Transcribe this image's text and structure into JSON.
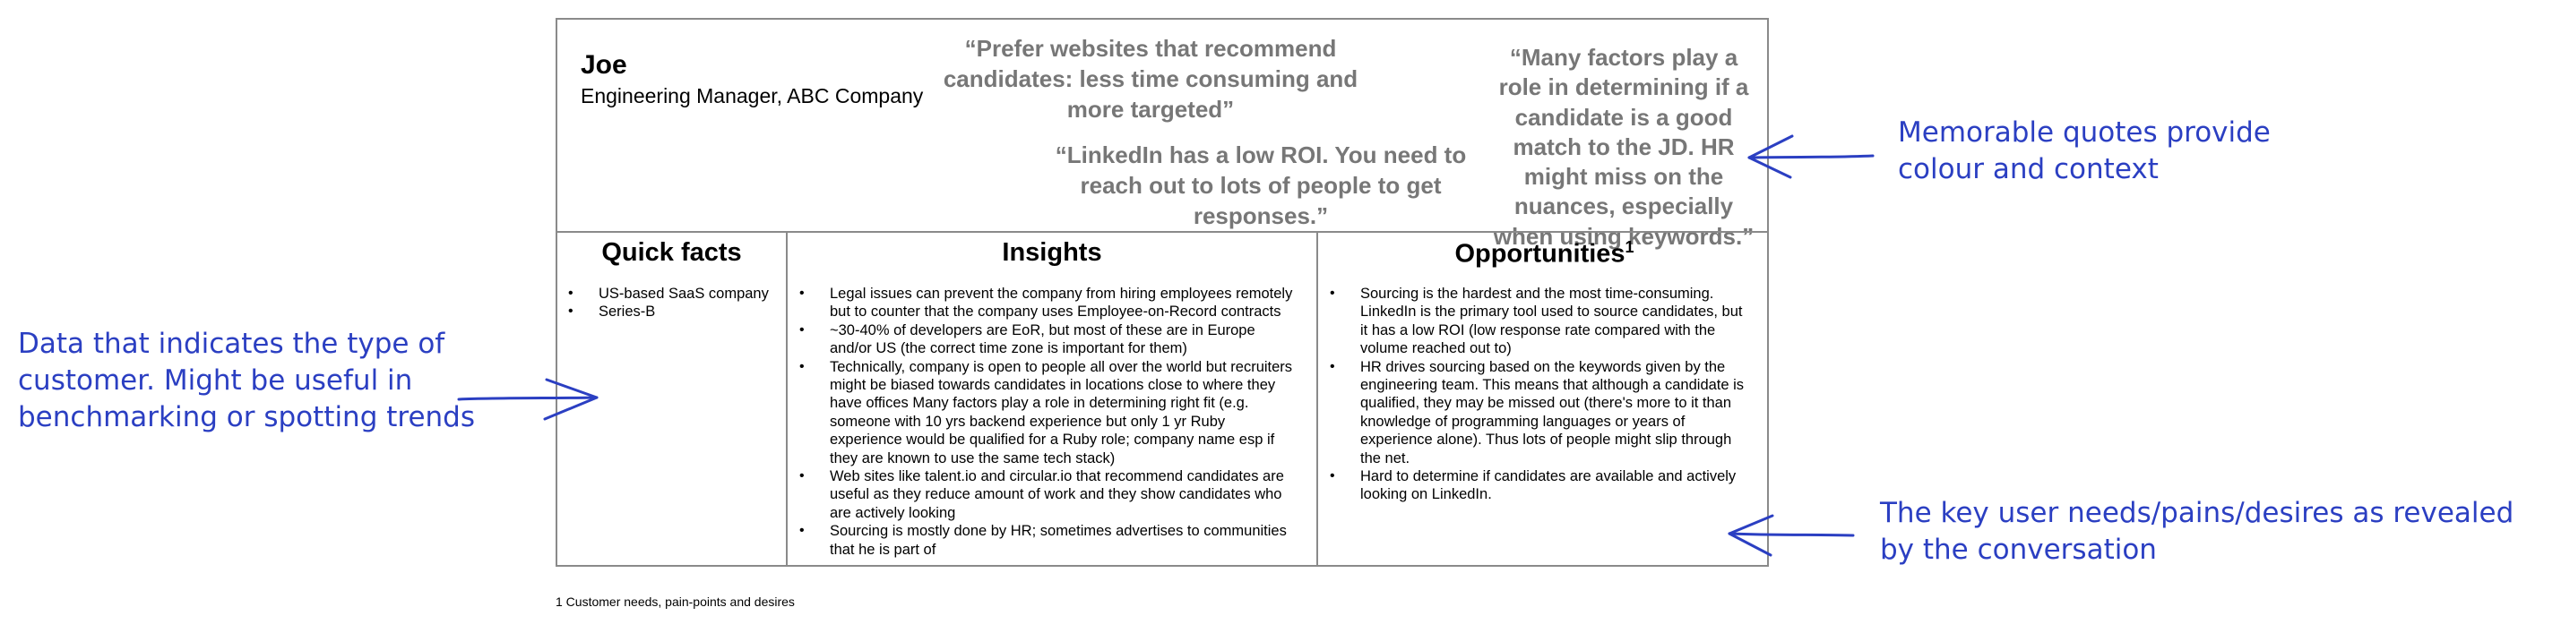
{
  "card": {
    "name": "Joe",
    "role": "Engineering Manager, ABC Company",
    "quotes": [
      "“Prefer websites that recommend candidates: less time consuming and more targeted”",
      "“LinkedIn has a low ROI. You need to reach out to lots of people to get responses.”",
      "“Many factors play a role in determining if a candidate is a good match to the JD. HR might miss on the nuances, especially when using keywords.”"
    ],
    "headers": {
      "quick_facts": "Quick facts",
      "insights": "Insights",
      "opportunities": "Opportunities",
      "opportunities_marker": "1"
    },
    "quick_facts": [
      "US-based SaaS company",
      "Series-B"
    ],
    "insights": [
      "Legal issues can prevent the company from hiring employees remotely but to counter that the company uses Employee-on-Record contracts",
      "~30-40% of developers are EoR, but most of these are in Europe and/or US (the correct time zone is important for them)",
      "Technically, company is open to people all over the world but recruiters might be biased towards candidates in locations close to where they have offices Many factors play a role in determining right fit (e.g. someone with 10 yrs backend experience but only 1 yr Ruby experience would be qualified for a Ruby role; company name esp if they are known to use the same tech stack)",
      "Web sites like talent.io and circular.io that recommend candidates are useful as they reduce amount of work and they show candidates who are actively looking",
      "Sourcing is mostly done by HR; sometimes advertises to communities that he is part of"
    ],
    "opportunities": [
      "Sourcing is the hardest and the most time-consuming. LinkedIn is the primary tool used to source candidates, but it has a low ROI (low response rate compared with the volume reached out to)",
      "HR drives sourcing based on the keywords given by the engineering team. This means that although a candidate is qualified, they may be missed out (there's more to it than knowledge of programming languages or years of experience alone). Thus lots of people might slip through the net.",
      "Hard to determine if candidates are available and actively looking on LinkedIn."
    ]
  },
  "footnote": "1 Customer needs, pain-points and desires",
  "annotations": {
    "quotes_note": "Memorable quotes provide colour and context",
    "facts_note": "Data that indicates the type of customer. Might be useful in benchmarking or spotting trends",
    "needs_note": "The key user needs/pains/desires as revealed by the conversation"
  },
  "colors": {
    "annotation": "#2b3fc2",
    "quote_text": "#777777",
    "border": "#8a8a8a"
  }
}
